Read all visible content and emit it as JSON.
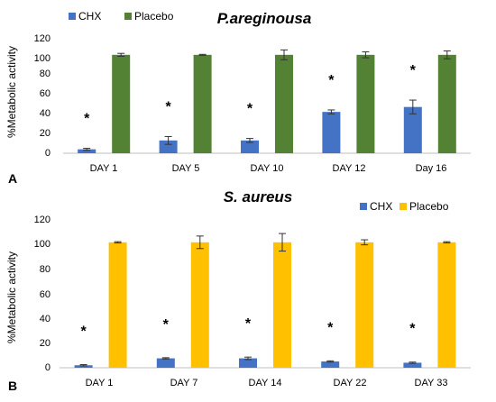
{
  "colors": {
    "chx_a": "#4472C4",
    "placebo_a": "#548235",
    "chx_b": "#4472C4",
    "placebo_b": "#FFC000"
  },
  "chart_data": [
    {
      "type": "bar",
      "panel": "A",
      "title": "P.areginousa",
      "ylabel": "%Metabolic activity",
      "ylim": [
        0,
        120
      ],
      "yticks": [
        "0",
        "20",
        "40",
        "60",
        "80",
        "100",
        "120"
      ],
      "categories": [
        "DAY 1",
        "DAY 5",
        "DAY 10",
        "DAY 12",
        "Day 16"
      ],
      "legend_position": "top-left",
      "significance_marker": "*",
      "significant": [
        true,
        true,
        true,
        true,
        true
      ],
      "series": [
        {
          "name": "CHX",
          "color": "#4472C4",
          "values": [
            4,
            13,
            13,
            42,
            47
          ],
          "errors": [
            1,
            4,
            2,
            2,
            7
          ]
        },
        {
          "name": "Placebo",
          "color": "#548235",
          "values": [
            100,
            100,
            100,
            100,
            100
          ],
          "errors": [
            1.5,
            0.5,
            5,
            3,
            4
          ]
        }
      ]
    },
    {
      "type": "bar",
      "panel": "B",
      "title": "S. aureus",
      "ylabel": "%Metabolic activity",
      "ylim": [
        0,
        120
      ],
      "yticks": [
        "0",
        "20",
        "40",
        "60",
        "80",
        "100",
        "120"
      ],
      "categories": [
        "DAY 1",
        "DAY 7",
        "DAY 14",
        "DAY 22",
        "DAY 33"
      ],
      "legend_position": "top-right",
      "significance_marker": "*",
      "significant": [
        true,
        true,
        true,
        true,
        true
      ],
      "series": [
        {
          "name": "CHX",
          "color": "#4472C4",
          "values": [
            2,
            7.5,
            7.5,
            5,
            4
          ],
          "errors": [
            0.5,
            0.5,
            1,
            0.5,
            0.5
          ]
        },
        {
          "name": "Placebo",
          "color": "#FFC000",
          "values": [
            100,
            100,
            100,
            100,
            100
          ],
          "errors": [
            0.5,
            5,
            7,
            2,
            0.5
          ]
        }
      ]
    }
  ]
}
